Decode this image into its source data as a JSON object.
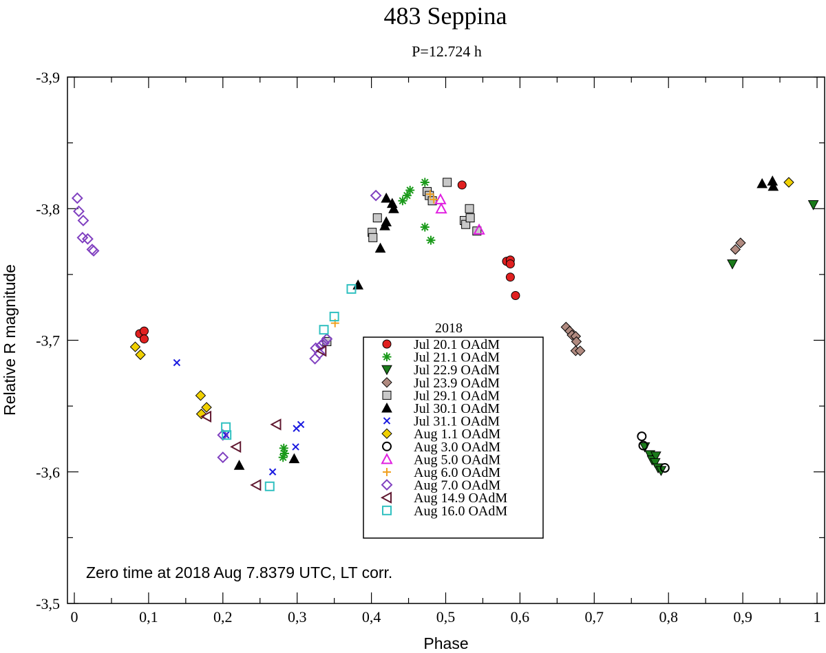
{
  "chart_data": {
    "type": "scatter",
    "title": "483 Seppina",
    "subtitle": "P=12.724 h",
    "xlabel": "Phase",
    "ylabel": "Relative R magnitude",
    "xlim": [
      0,
      1
    ],
    "ylim": [
      -3.9,
      -3.5
    ],
    "y_inverted": true,
    "x_ticks": [
      0,
      0.1,
      0.2,
      0.3,
      0.4,
      0.5,
      0.6,
      0.7,
      0.8,
      0.9,
      1
    ],
    "x_tick_labels": [
      "0",
      "0,1",
      "0,2",
      "0,3",
      "0,4",
      "0,5",
      "0,6",
      "0,7",
      "0,8",
      "0,9",
      "1"
    ],
    "y_ticks": [
      -3.9,
      -3.8,
      -3.7,
      -3.6,
      -3.5
    ],
    "y_tick_labels": [
      "-3,9",
      "-3,8",
      "-3,7",
      "-3,6",
      "-3,5"
    ],
    "annotation": "Zero time at 2018 Aug 7.8379 UTC, LT corr.",
    "legend_title": "2018",
    "legend_position": "center",
    "series": [
      {
        "name": "Jul 20.1 OAdM",
        "marker": "filled-circle",
        "color": "#e02020",
        "points": [
          [
            0.088,
            -3.705
          ],
          [
            0.094,
            -3.707
          ],
          [
            0.094,
            -3.701
          ],
          [
            0.522,
            -3.818
          ],
          [
            0.582,
            -3.76
          ],
          [
            0.587,
            -3.761
          ],
          [
            0.587,
            -3.758
          ],
          [
            0.587,
            -3.748
          ],
          [
            0.594,
            -3.734
          ]
        ]
      },
      {
        "name": "Jul 21.1 OAdM",
        "marker": "star",
        "color": "#1a9a1a",
        "points": [
          [
            0.282,
            -3.618
          ],
          [
            0.283,
            -3.614
          ],
          [
            0.281,
            -3.611
          ],
          [
            0.442,
            -3.806
          ],
          [
            0.448,
            -3.81
          ],
          [
            0.452,
            -3.814
          ],
          [
            0.472,
            -3.82
          ],
          [
            0.472,
            -3.786
          ],
          [
            0.48,
            -3.776
          ]
        ]
      },
      {
        "name": "Jul 22.9 OAdM",
        "marker": "filled-triangle-down",
        "color": "#1a7a1a",
        "points": [
          [
            0.768,
            -3.619
          ],
          [
            0.775,
            -3.613
          ],
          [
            0.778,
            -3.609
          ],
          [
            0.783,
            -3.612
          ],
          [
            0.782,
            -3.607
          ],
          [
            0.786,
            -3.603
          ],
          [
            0.79,
            -3.601
          ],
          [
            0.886,
            -3.758
          ],
          [
            0.995,
            -3.803
          ]
        ]
      },
      {
        "name": "Jul 23.9 OAdM",
        "marker": "filled-diamond",
        "color": "#b08a80",
        "points": [
          [
            0.662,
            -3.71
          ],
          [
            0.667,
            -3.707
          ],
          [
            0.67,
            -3.704
          ],
          [
            0.675,
            -3.703
          ],
          [
            0.676,
            -3.699
          ],
          [
            0.675,
            -3.692
          ],
          [
            0.681,
            -3.692
          ],
          [
            0.89,
            -3.769
          ],
          [
            0.897,
            -3.774
          ]
        ]
      },
      {
        "name": "Jul 29.1 OAdM",
        "marker": "filled-square",
        "color": "#c8c8c8",
        "points": [
          [
            0.34,
            -3.699
          ],
          [
            0.401,
            -3.782
          ],
          [
            0.402,
            -3.778
          ],
          [
            0.408,
            -3.793
          ],
          [
            0.475,
            -3.813
          ],
          [
            0.478,
            -3.81
          ],
          [
            0.482,
            -3.806
          ],
          [
            0.502,
            -3.82
          ],
          [
            0.525,
            -3.791
          ],
          [
            0.527,
            -3.788
          ],
          [
            0.532,
            -3.8
          ],
          [
            0.533,
            -3.793
          ],
          [
            0.542,
            -3.783
          ]
        ]
      },
      {
        "name": "Jul 30.1 OAdM",
        "marker": "filled-triangle-up",
        "color": "#000000",
        "points": [
          [
            0.222,
            -3.605
          ],
          [
            0.296,
            -3.61
          ],
          [
            0.382,
            -3.742
          ],
          [
            0.412,
            -3.77
          ],
          [
            0.418,
            -3.787
          ],
          [
            0.42,
            -3.79
          ],
          [
            0.42,
            -3.808
          ],
          [
            0.428,
            -3.804
          ],
          [
            0.43,
            -3.8
          ],
          [
            0.926,
            -3.819
          ],
          [
            0.94,
            -3.821
          ],
          [
            0.941,
            -3.817
          ]
        ]
      },
      {
        "name": "Jul 31.1 OAdM",
        "marker": "x-cross",
        "color": "#1a1ae0",
        "points": [
          [
            0.138,
            -3.683
          ],
          [
            0.204,
            -3.628
          ],
          [
            0.267,
            -3.6
          ],
          [
            0.298,
            -3.619
          ],
          [
            0.299,
            -3.633
          ],
          [
            0.305,
            -3.636
          ]
        ]
      },
      {
        "name": "Aug 1.1 OAdM",
        "marker": "filled-diamond",
        "color": "#f0d000",
        "points": [
          [
            0.082,
            -3.695
          ],
          [
            0.089,
            -3.689
          ],
          [
            0.17,
            -3.658
          ],
          [
            0.171,
            -3.644
          ],
          [
            0.178,
            -3.649
          ],
          [
            0.962,
            -3.82
          ]
        ]
      },
      {
        "name": "Aug 3.0 OAdM",
        "marker": "open-circle",
        "color": "#000000",
        "points": [
          [
            0.764,
            -3.627
          ],
          [
            0.766,
            -3.62
          ],
          [
            0.795,
            -3.603
          ]
        ]
      },
      {
        "name": "Aug 5.0 OAdM",
        "marker": "open-triangle-up",
        "color": "#e020e0",
        "points": [
          [
            0.493,
            -3.807
          ],
          [
            0.494,
            -3.8
          ],
          [
            0.545,
            -3.784
          ]
        ]
      },
      {
        "name": "Aug 6.0 OAdM",
        "marker": "plus",
        "color": "#f0a020",
        "points": [
          [
            0.351,
            -3.713
          ],
          [
            0.479,
            -3.811
          ],
          [
            0.484,
            -3.807
          ]
        ]
      },
      {
        "name": "Aug 7.0 OAdM",
        "marker": "open-diamond",
        "color": "#8040c0",
        "points": [
          [
            0.004,
            -3.808
          ],
          [
            0.006,
            -3.798
          ],
          [
            0.012,
            -3.791
          ],
          [
            0.011,
            -3.778
          ],
          [
            0.018,
            -3.777
          ],
          [
            0.024,
            -3.769
          ],
          [
            0.026,
            -3.768
          ],
          [
            0.2,
            -3.628
          ],
          [
            0.2,
            -3.611
          ],
          [
            0.324,
            -3.686
          ],
          [
            0.325,
            -3.694
          ],
          [
            0.33,
            -3.69
          ],
          [
            0.332,
            -3.696
          ],
          [
            0.336,
            -3.698
          ],
          [
            0.34,
            -3.701
          ],
          [
            0.406,
            -3.81
          ]
        ]
      },
      {
        "name": "Aug 14.9 OAdM",
        "marker": "open-triangle-left",
        "color": "#601830",
        "points": [
          [
            0.178,
            -3.642
          ],
          [
            0.218,
            -3.619
          ],
          [
            0.245,
            -3.59
          ],
          [
            0.272,
            -3.636
          ],
          [
            0.333,
            -3.692
          ]
        ]
      },
      {
        "name": "Aug 16.0 OAdM",
        "marker": "open-square",
        "color": "#30c0c0",
        "points": [
          [
            0.204,
            -3.634
          ],
          [
            0.205,
            -3.628
          ],
          [
            0.263,
            -3.589
          ],
          [
            0.336,
            -3.708
          ],
          [
            0.35,
            -3.718
          ],
          [
            0.373,
            -3.739
          ]
        ]
      }
    ]
  }
}
